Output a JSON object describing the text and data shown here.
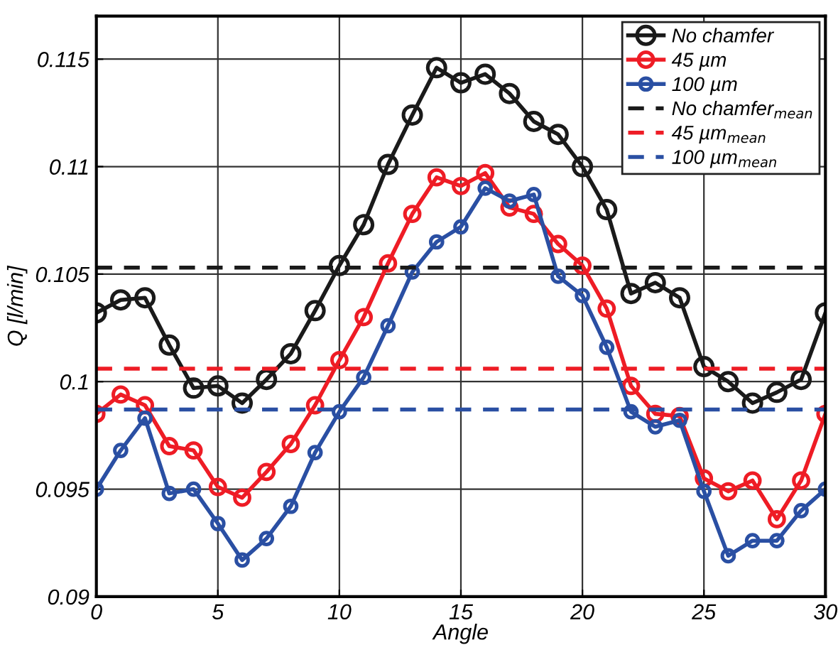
{
  "chart_data": {
    "type": "line",
    "xlabel": "Angle",
    "ylabel": "Q [l/min]",
    "x": [
      0,
      1,
      2,
      3,
      4,
      5,
      6,
      7,
      8,
      9,
      10,
      11,
      12,
      13,
      14,
      15,
      16,
      17,
      18,
      19,
      20,
      21,
      22,
      23,
      24,
      25,
      26,
      27,
      28,
      29,
      30
    ],
    "series": [
      {
        "name": "No chamfer",
        "color": "#1a1a1a",
        "values": [
          0.1032,
          0.1038,
          0.1039,
          0.1017,
          0.0997,
          0.0998,
          0.099,
          0.1001,
          0.1013,
          0.1033,
          0.1054,
          0.1073,
          0.1101,
          0.1124,
          0.1146,
          0.1139,
          0.1143,
          0.1134,
          0.1121,
          0.1115,
          0.11,
          0.108,
          0.1041,
          0.1046,
          0.1039,
          0.1007,
          0.1,
          0.099,
          0.0995,
          0.1001,
          0.1032
        ]
      },
      {
        "name": "45 µm",
        "color": "#ee1c25",
        "values": [
          0.0985,
          0.0994,
          0.0989,
          0.097,
          0.0968,
          0.0951,
          0.0946,
          0.0958,
          0.0971,
          0.0989,
          0.101,
          0.103,
          0.1055,
          0.1078,
          0.1095,
          0.1091,
          0.1097,
          0.1081,
          0.1078,
          0.1064,
          0.1054,
          0.1034,
          0.0998,
          0.0985,
          0.0984,
          0.0955,
          0.0949,
          0.0954,
          0.0936,
          0.0954,
          0.0985
        ]
      },
      {
        "name": "100 µm",
        "color": "#2a4fa3",
        "values": [
          0.095,
          0.0968,
          0.0983,
          0.0948,
          0.095,
          0.0934,
          0.0917,
          0.0927,
          0.0942,
          0.0967,
          0.0986,
          0.1002,
          0.1026,
          0.1051,
          0.1065,
          0.1072,
          0.109,
          0.1084,
          0.1087,
          0.1049,
          0.104,
          0.1016,
          0.0986,
          0.0979,
          0.0982,
          0.0949,
          0.0919,
          0.0926,
          0.0926,
          0.094,
          0.095
        ]
      }
    ],
    "ref_lines": [
      {
        "axis": "y",
        "value": 0.1053,
        "label": "No chamfer$_{mean}$",
        "color": "#1a1a1a",
        "line_style": "dashed"
      },
      {
        "axis": "y",
        "value": 0.1006,
        "label": "45 µm$_{mean}$",
        "color": "#ee1c25",
        "line_style": "dashed"
      },
      {
        "axis": "y",
        "value": 0.0987,
        "label": "100 µm$_{mean}$",
        "color": "#2a4fa3",
        "line_style": "dashed"
      }
    ],
    "xlim": [
      0,
      30
    ],
    "xticks": [
      0,
      5,
      10,
      15,
      20,
      25,
      30
    ],
    "ylim": [
      0.09,
      0.117
    ],
    "yticks": [
      0.09,
      0.095,
      0.1,
      0.105,
      0.11,
      0.115
    ],
    "grid": true,
    "legend": "top right",
    "marker": "circle",
    "line_style": "solid"
  }
}
